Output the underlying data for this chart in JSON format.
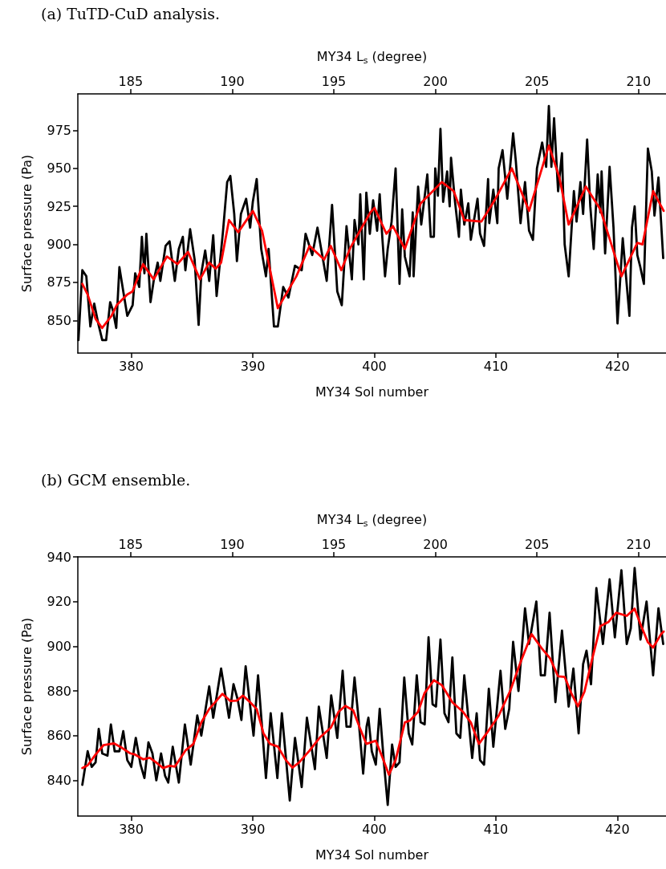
{
  "chart_data": [
    {
      "type": "line",
      "title": "(a) TuTD-CuD analysis.",
      "xlabel": "MY34 Sol number",
      "ylabel": "Surface pressure (Pa)",
      "x2label": "MY34 L$_{s}$ (degree)",
      "xlim": [
        375.6,
        424
      ],
      "xticks": [
        380,
        390,
        400,
        410,
        420
      ],
      "x2lim": [
        182.4,
        211.35
      ],
      "x2ticks": [
        185,
        190,
        195,
        200,
        205,
        210
      ],
      "ylim": [
        828.5,
        999
      ],
      "yticks": [
        850,
        875,
        900,
        925,
        950,
        975
      ],
      "line_style": "solid",
      "series": [
        {
          "color": "#000000",
          "x": [
            375.65,
            375.97,
            376.3,
            376.63,
            376.95,
            377.28,
            377.61,
            377.93,
            378.26,
            378.47,
            378.76,
            379.02,
            379.34,
            379.67,
            380.11,
            380.32,
            380.65,
            380.87,
            381.08,
            381.24,
            381.58,
            381.84,
            382.17,
            382.39,
            382.82,
            383.15,
            383.58,
            383.91,
            384.24,
            384.45,
            384.84,
            385.21,
            385.54,
            385.76,
            386.08,
            386.41,
            386.74,
            387.02,
            387.54,
            387.89,
            388.15,
            388.47,
            388.69,
            389.02,
            389.45,
            389.78,
            390.0,
            390.32,
            390.69,
            391.08,
            391.3,
            391.74,
            392.06,
            392.5,
            392.93,
            393.47,
            394.02,
            394.34,
            394.89,
            395.32,
            396.08,
            396.52,
            396.95,
            397.32,
            397.71,
            398.15,
            398.37,
            398.69,
            398.84,
            399.13,
            399.34,
            399.63,
            399.9,
            400.23,
            400.44,
            400.66,
            400.88,
            401.1,
            401.42,
            401.75,
            402.07,
            402.29,
            402.51,
            402.9,
            403.16,
            403.23,
            403.6,
            403.86,
            404.36,
            404.64,
            404.9,
            405.01,
            405.23,
            405.44,
            405.66,
            405.99,
            406.2,
            406.31,
            406.64,
            406.96,
            407.12,
            407.4,
            407.73,
            407.94,
            408.16,
            408.49,
            408.7,
            409.03,
            409.36,
            409.46,
            409.79,
            410.12,
            410.23,
            410.55,
            410.94,
            411.42,
            411.64,
            412.03,
            412.4,
            412.73,
            413.05,
            413.38,
            413.81,
            414.14,
            414.36,
            414.57,
            414.79,
            415.12,
            415.44,
            415.66,
            415.99,
            416.42,
            416.64,
            416.96,
            417.18,
            417.51,
            417.77,
            418.05,
            418.38,
            418.6,
            418.7,
            418.99,
            419.36,
            419.68,
            420.01,
            420.44,
            420.99,
            421.2,
            421.42,
            421.64,
            421.86,
            422.18,
            422.51,
            422.83,
            423.05,
            423.38,
            423.77
          ],
          "values": [
            837,
            883,
            879,
            846,
            861,
            848,
            837,
            837,
            862,
            857,
            845,
            885,
            869,
            853,
            860,
            881,
            872,
            905,
            881,
            907,
            862,
            876,
            888,
            876,
            899,
            902,
            876,
            897,
            905,
            883,
            910,
            890,
            847,
            881,
            896,
            876,
            906,
            866,
            908,
            941,
            945,
            920,
            889,
            920,
            930,
            911,
            928,
            943,
            897,
            879,
            897,
            846,
            846,
            872,
            865,
            886,
            883,
            907,
            893,
            911,
            876,
            926,
            869,
            860,
            912,
            877,
            916,
            900,
            933,
            877,
            934,
            907,
            929,
            909,
            933,
            904,
            879,
            897,
            915,
            950,
            874,
            923,
            892,
            879,
            921,
            879,
            938,
            913,
            946,
            905,
            905,
            950,
            932,
            976,
            928,
            948,
            925,
            957,
            928,
            905,
            936,
            913,
            927,
            903,
            914,
            930,
            907,
            899,
            943,
            914,
            936,
            914,
            950,
            962,
            930,
            973,
            955,
            914,
            941,
            909,
            903,
            950,
            967,
            951,
            991,
            951,
            983,
            935,
            960,
            900,
            879,
            935,
            915,
            941,
            920,
            969,
            925,
            897,
            946,
            921,
            948,
            894,
            951,
            911,
            848,
            904,
            853,
            911,
            925,
            893,
            886,
            874,
            963,
            948,
            919,
            944,
            891
          ]
        },
        {
          "color": "#ff0000",
          "x": [
            375.97,
            376.41,
            377.06,
            377.6,
            378.37,
            378.8,
            379.67,
            380.1,
            380.97,
            381.84,
            382.93,
            383.8,
            384.67,
            385.65,
            386.41,
            386.95,
            387.39,
            388.04,
            388.8,
            390.0,
            390.76,
            392.06,
            393.58,
            394.67,
            395.87,
            396.41,
            397.28,
            398.04,
            399.67,
            400.01,
            400.99,
            401.53,
            402.51,
            403.81,
            405.55,
            406.53,
            407.4,
            408.81,
            409.9,
            411.31,
            412.73,
            414.36,
            415.23,
            415.99,
            417.4,
            418.6,
            420.33,
            421.64,
            422.07,
            422.94,
            423.81
          ],
          "values": [
            874,
            867,
            851,
            845,
            853,
            860,
            867,
            869,
            887,
            877,
            892,
            887,
            895,
            877,
            888,
            884,
            888,
            916,
            908,
            922,
            909,
            858,
            879,
            899,
            890,
            899,
            883,
            898,
            921,
            924,
            907,
            912,
            897,
            927,
            941,
            935,
            916,
            915,
            929,
            950,
            922,
            965,
            944,
            913,
            938,
            923,
            879,
            901,
            900,
            935,
            922
          ]
        }
      ]
    },
    {
      "type": "line",
      "title": "(b) GCM ensemble.",
      "xlabel": "MY34 Sol number",
      "ylabel": "Surface pressure (Pa)",
      "x2label": "MY34 L$_{s}$ (degree)",
      "xlim": [
        375.6,
        424
      ],
      "xticks": [
        380,
        390,
        400,
        410,
        420
      ],
      "x2lim": [
        182.4,
        211.35
      ],
      "x2ticks": [
        185,
        190,
        195,
        200,
        205,
        210
      ],
      "ylim": [
        824,
        940
      ],
      "yticks": [
        840,
        860,
        880,
        900,
        920,
        940
      ],
      "line_style": "solid",
      "series": [
        {
          "color": "#000000",
          "x": [
            375.97,
            376.41,
            376.74,
            377.06,
            377.32,
            377.61,
            378.04,
            378.32,
            378.63,
            379.02,
            379.34,
            379.67,
            380.0,
            380.37,
            380.76,
            381.08,
            381.41,
            381.74,
            382.06,
            382.45,
            382.78,
            383.04,
            383.41,
            383.91,
            384.41,
            384.89,
            385.43,
            385.76,
            386.41,
            386.74,
            387.39,
            388.04,
            388.41,
            388.76,
            389.06,
            389.41,
            389.89,
            390.06,
            390.43,
            391.08,
            391.47,
            392.02,
            392.39,
            393.04,
            393.47,
            394.02,
            394.45,
            395.11,
            395.43,
            396.08,
            396.45,
            396.95,
            397.39,
            397.71,
            398.04,
            398.37,
            398.69,
            399.08,
            399.36,
            399.51,
            399.79,
            400.12,
            400.44,
            400.77,
            401.1,
            401.46,
            401.75,
            402.07,
            402.46,
            402.83,
            403.12,
            403.49,
            403.81,
            404.14,
            404.46,
            404.79,
            405.07,
            405.44,
            405.77,
            406.1,
            406.42,
            406.75,
            407.07,
            407.4,
            408.05,
            408.42,
            408.7,
            409.03,
            409.42,
            409.79,
            410.38,
            410.77,
            411.1,
            411.42,
            411.86,
            412.4,
            412.73,
            413.33,
            413.7,
            414.03,
            414.42,
            414.9,
            415.44,
            415.99,
            416.38,
            416.81,
            417.18,
            417.46,
            417.83,
            418.27,
            418.81,
            419.36,
            419.79,
            420.33,
            420.77,
            421.1,
            421.42,
            421.9,
            422.4,
            422.94,
            423.38,
            423.77
          ],
          "values": [
            838,
            853,
            846,
            848,
            863,
            852,
            851,
            865,
            853,
            853,
            862,
            849,
            846,
            859,
            847,
            841,
            857,
            852,
            840,
            852,
            842,
            839,
            855,
            839,
            865,
            847,
            869,
            860,
            882,
            868,
            890,
            868,
            883,
            876,
            867,
            891,
            868,
            860,
            887,
            841,
            870,
            841,
            870,
            831,
            859,
            837,
            868,
            845,
            873,
            850,
            878,
            859,
            889,
            864,
            864,
            886,
            868,
            843,
            864,
            868,
            853,
            847,
            872,
            849,
            829,
            856,
            846,
            848,
            886,
            861,
            856,
            887,
            866,
            865,
            904,
            874,
            873,
            903,
            870,
            866,
            895,
            861,
            859,
            887,
            850,
            870,
            849,
            847,
            881,
            855,
            889,
            863,
            872,
            902,
            880,
            917,
            901,
            920,
            887,
            887,
            915,
            875,
            907,
            873,
            890,
            861,
            892,
            898,
            883,
            926,
            901,
            930,
            904,
            934,
            901,
            908,
            935,
            903,
            920,
            887,
            917,
            901
          ]
        },
        {
          "color": "#ff0000",
          "x": [
            375.97,
            376.41,
            377.06,
            377.71,
            378.58,
            379.24,
            379.89,
            380.32,
            380.97,
            381.52,
            382.06,
            382.61,
            383.15,
            383.58,
            384.45,
            385.11,
            385.76,
            386.41,
            387.5,
            388.15,
            388.69,
            389.19,
            389.67,
            390.32,
            390.87,
            391.41,
            392.06,
            392.71,
            393.26,
            393.8,
            394.67,
            395.54,
            396.41,
            397.06,
            397.61,
            398.26,
            398.8,
            399.34,
            400.12,
            400.66,
            401.2,
            401.75,
            402.51,
            402.94,
            403.6,
            404.14,
            404.9,
            405.55,
            406.42,
            407.29,
            407.94,
            408.6,
            409.25,
            410.23,
            411.2,
            412.07,
            412.94,
            413.81,
            414.46,
            415.12,
            415.66,
            416.2,
            416.75,
            417.29,
            417.94,
            418.6,
            419.25,
            419.9,
            420.77,
            421.42,
            421.96,
            422.51,
            422.94,
            423.59,
            423.81
          ],
          "values": [
            845.5,
            846.7,
            851.5,
            855.7,
            856.5,
            854.5,
            852.1,
            851.5,
            849.4,
            850.1,
            847.9,
            845.5,
            846.5,
            846.1,
            853.3,
            856.3,
            865.9,
            871.9,
            878.7,
            875.5,
            875.7,
            877.9,
            875.5,
            871.9,
            861.1,
            856.3,
            855.1,
            849.1,
            845.7,
            847.9,
            853.3,
            859.3,
            863.5,
            870.7,
            873.3,
            871.3,
            863.5,
            856.3,
            857.7,
            850.3,
            842.5,
            849.1,
            865.9,
            866.8,
            870.7,
            879.1,
            884.8,
            882.6,
            874.9,
            870.7,
            865.9,
            856.3,
            861.1,
            868.9,
            880.3,
            893.4,
            905.4,
            898.8,
            894.6,
            886.5,
            886.3,
            879.1,
            873.1,
            879.7,
            894.6,
            909,
            910.8,
            915,
            913.6,
            916.8,
            909,
            901.8,
            899.4,
            905.4,
            906.6
          ]
        }
      ]
    }
  ]
}
